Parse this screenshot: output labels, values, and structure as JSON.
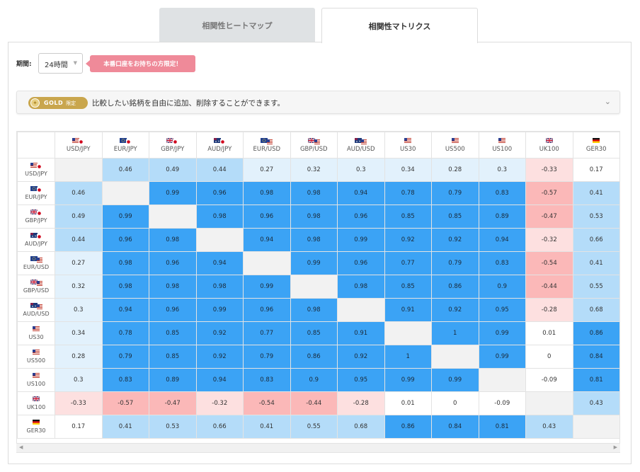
{
  "tabs": [
    {
      "label": "相関性ヒートマップ"
    },
    {
      "label": "相関性マトリクス"
    }
  ],
  "filters": {
    "period_label": "期間:",
    "period_value": "24時間",
    "promo_badge": "本番口座をお持ちの方限定！"
  },
  "gold_bar": {
    "badge_word": "GOLD",
    "badge_limit": "限定",
    "text": "比較したい銘柄を自由に追加、削除することができます。"
  },
  "colors": {
    "strong_pos": "#3ba3f5",
    "mid_pos": "#b4dcf9",
    "weak_pos": "#e2f1fc",
    "neutral": "#ffffff",
    "weak_neg": "#fde0e0",
    "mid_neg": "#fbb8b8",
    "diagonal": "#f2f2f2"
  },
  "matrix": {
    "symbols": [
      {
        "label": "USD/JPY",
        "flag": "us-jp"
      },
      {
        "label": "EUR/JPY",
        "flag": "eu-jp"
      },
      {
        "label": "GBP/JPY",
        "flag": "gb-jp"
      },
      {
        "label": "AUD/JPY",
        "flag": "au-jp"
      },
      {
        "label": "EUR/USD",
        "flag": "eu-us"
      },
      {
        "label": "GBP/USD",
        "flag": "gb-us"
      },
      {
        "label": "AUD/USD",
        "flag": "au-us"
      },
      {
        "label": "US30",
        "flag": "us"
      },
      {
        "label": "US500",
        "flag": "us"
      },
      {
        "label": "US100",
        "flag": "us"
      },
      {
        "label": "UK100",
        "flag": "gb"
      },
      {
        "label": "GER30",
        "flag": "de"
      }
    ],
    "values": [
      [
        "",
        "0.46",
        "0.49",
        "0.44",
        "0.27",
        "0.32",
        "0.3",
        "0.34",
        "0.28",
        "0.3",
        "-0.33",
        "0.17"
      ],
      [
        "0.46",
        "",
        "0.99",
        "0.96",
        "0.98",
        "0.98",
        "0.94",
        "0.78",
        "0.79",
        "0.83",
        "-0.57",
        "0.41"
      ],
      [
        "0.49",
        "0.99",
        "",
        "0.98",
        "0.96",
        "0.98",
        "0.96",
        "0.85",
        "0.85",
        "0.89",
        "-0.47",
        "0.53"
      ],
      [
        "0.44",
        "0.96",
        "0.98",
        "",
        "0.94",
        "0.98",
        "0.99",
        "0.92",
        "0.92",
        "0.94",
        "-0.32",
        "0.66"
      ],
      [
        "0.27",
        "0.98",
        "0.96",
        "0.94",
        "",
        "0.99",
        "0.96",
        "0.77",
        "0.79",
        "0.83",
        "-0.54",
        "0.41"
      ],
      [
        "0.32",
        "0.98",
        "0.98",
        "0.98",
        "0.99",
        "",
        "0.98",
        "0.85",
        "0.86",
        "0.9",
        "-0.44",
        "0.55"
      ],
      [
        "0.3",
        "0.94",
        "0.96",
        "0.99",
        "0.96",
        "0.98",
        "",
        "0.91",
        "0.92",
        "0.95",
        "-0.28",
        "0.68"
      ],
      [
        "0.34",
        "0.78",
        "0.85",
        "0.92",
        "0.77",
        "0.85",
        "0.91",
        "",
        "1",
        "0.99",
        "0.01",
        "0.86"
      ],
      [
        "0.28",
        "0.79",
        "0.85",
        "0.92",
        "0.79",
        "0.86",
        "0.92",
        "1",
        "",
        "0.99",
        "0",
        "0.84"
      ],
      [
        "0.3",
        "0.83",
        "0.89",
        "0.94",
        "0.83",
        "0.9",
        "0.95",
        "0.99",
        "0.99",
        "",
        "-0.09",
        "0.81"
      ],
      [
        "-0.33",
        "-0.57",
        "-0.47",
        "-0.32",
        "-0.54",
        "-0.44",
        "-0.28",
        "0.01",
        "0",
        "-0.09",
        "",
        "0.43"
      ],
      [
        "0.17",
        "0.41",
        "0.53",
        "0.66",
        "0.41",
        "0.55",
        "0.68",
        "0.86",
        "0.84",
        "0.81",
        "0.43",
        ""
      ]
    ]
  }
}
